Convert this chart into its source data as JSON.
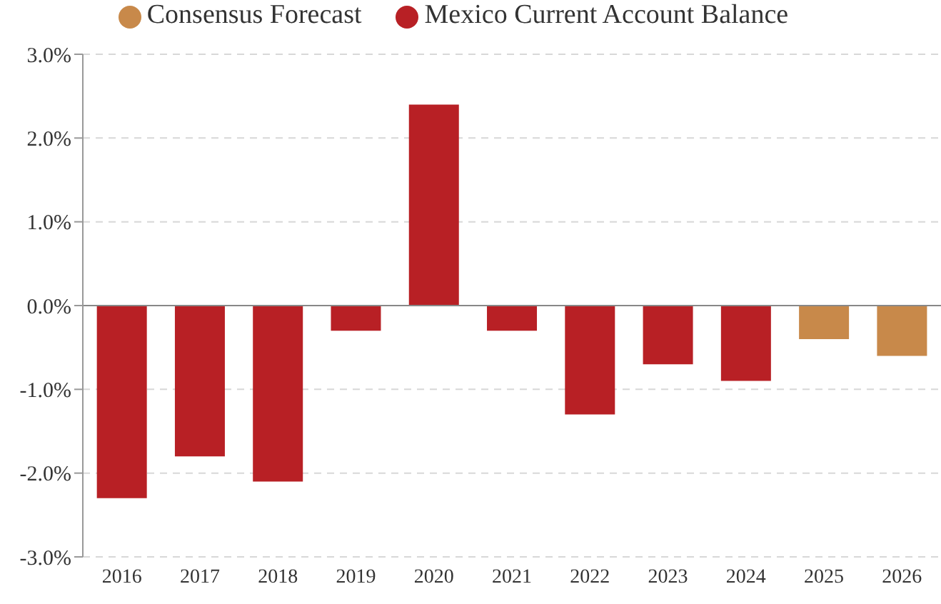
{
  "chart_data": {
    "type": "bar",
    "categories": [
      "2016",
      "2017",
      "2018",
      "2019",
      "2020",
      "2021",
      "2022",
      "2023",
      "2024",
      "2025",
      "2026"
    ],
    "series": [
      {
        "name": "Mexico Current Account Balance",
        "color": "#b82025",
        "values": [
          -2.3,
          -1.8,
          -2.1,
          -0.3,
          2.4,
          -0.3,
          -1.3,
          -0.7,
          -0.9,
          null,
          null
        ]
      },
      {
        "name": "Consensus Forecast",
        "color": "#c8894a",
        "values": [
          null,
          null,
          null,
          null,
          null,
          null,
          null,
          null,
          null,
          -0.4,
          -0.6
        ]
      }
    ],
    "stacked": true,
    "ylim": [
      -3,
      3
    ],
    "yticks": [
      {
        "value": -3,
        "label": "-3.0%"
      },
      {
        "value": -2,
        "label": "-2.0%"
      },
      {
        "value": -1,
        "label": "-1.0%"
      },
      {
        "value": 0,
        "label": "0.0%"
      },
      {
        "value": 1,
        "label": "1.0%"
      },
      {
        "value": 2,
        "label": "2.0%"
      },
      {
        "value": 3,
        "label": "3.0%"
      }
    ],
    "grid": "y",
    "legend": "top"
  }
}
